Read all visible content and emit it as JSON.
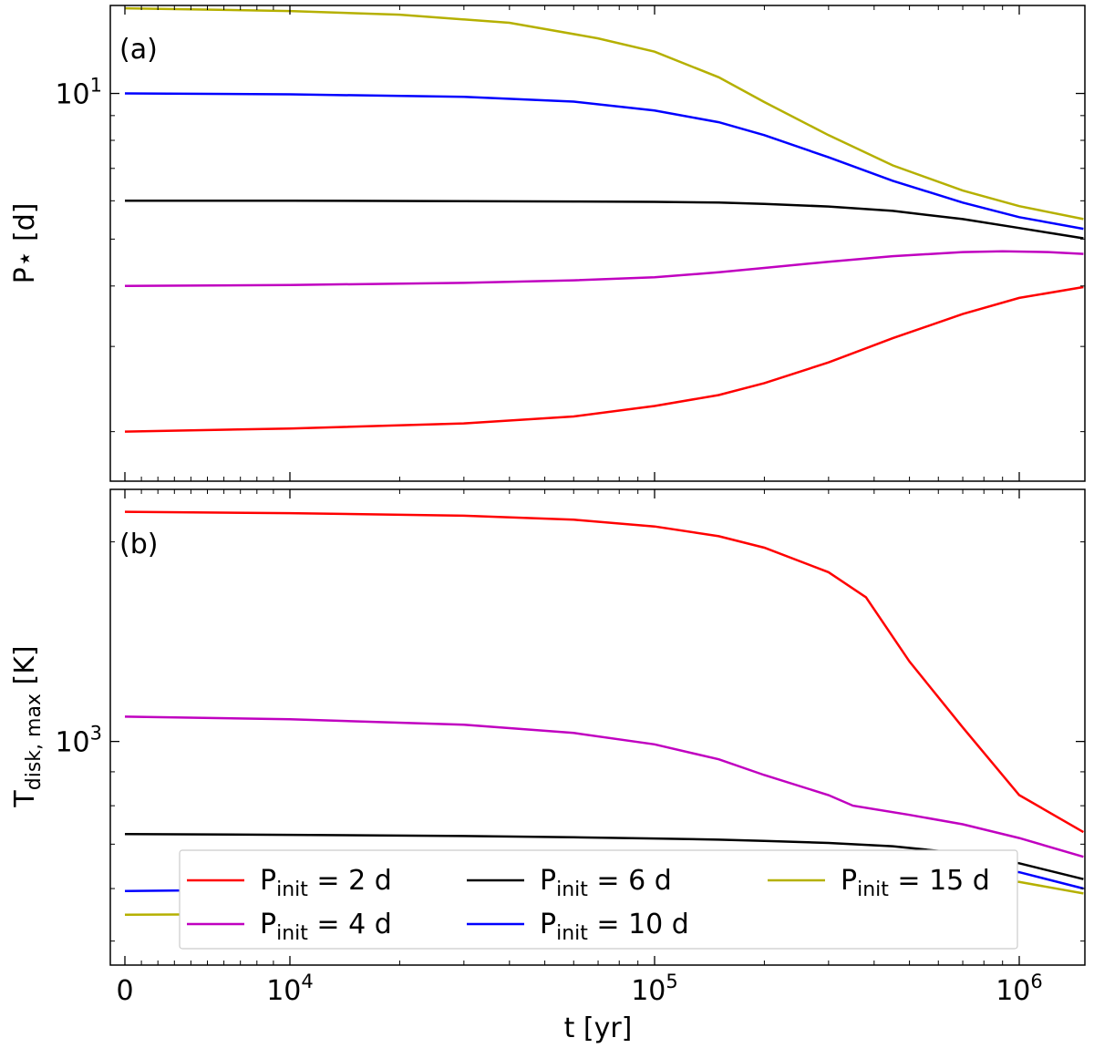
{
  "chart_data": [
    {
      "type": "line",
      "panel_label": "(a)",
      "xlabel": "",
      "ylabel": "P⋆ [d]",
      "xscale": "symlog",
      "yscale": "log",
      "xlim": [
        0,
        1500000
      ],
      "ylim": [
        1.58,
        15.2
      ],
      "yticks": [
        {
          "value": 10,
          "base": "10",
          "exp": "1"
        }
      ],
      "xtick_labels_shown": false,
      "grid": false,
      "series": [
        {
          "name": "P_init = 2 d",
          "color": "#ff0000",
          "x": [
            0,
            10000,
            30000,
            60000,
            100000,
            150000,
            200000,
            300000,
            450000,
            700000,
            1000000,
            1500000
          ],
          "y": [
            2.0,
            2.03,
            2.08,
            2.15,
            2.26,
            2.38,
            2.52,
            2.78,
            3.12,
            3.5,
            3.78,
            3.98
          ]
        },
        {
          "name": "P_init = 4 d",
          "color": "#c000c0",
          "x": [
            0,
            10000,
            30000,
            60000,
            100000,
            150000,
            200000,
            300000,
            450000,
            700000,
            900000,
            1200000,
            1500000
          ],
          "y": [
            4.0,
            4.02,
            4.06,
            4.11,
            4.17,
            4.27,
            4.36,
            4.49,
            4.61,
            4.7,
            4.72,
            4.7,
            4.66
          ]
        },
        {
          "name": "P_init = 6 d",
          "color": "#000000",
          "x": [
            0,
            10000,
            30000,
            60000,
            100000,
            150000,
            200000,
            300000,
            450000,
            700000,
            1000000,
            1500000
          ],
          "y": [
            6.0,
            6.0,
            5.99,
            5.98,
            5.97,
            5.95,
            5.91,
            5.84,
            5.72,
            5.5,
            5.27,
            5.02
          ]
        },
        {
          "name": "P_init = 10 d",
          "color": "#0000ff",
          "x": [
            0,
            10000,
            30000,
            60000,
            100000,
            150000,
            200000,
            300000,
            450000,
            700000,
            1000000,
            1500000
          ],
          "y": [
            10.0,
            9.96,
            9.84,
            9.62,
            9.22,
            8.72,
            8.2,
            7.38,
            6.6,
            5.95,
            5.55,
            5.25
          ]
        },
        {
          "name": "P_init = 15 d",
          "color": "#b5b000",
          "x": [
            0,
            10000,
            20000,
            40000,
            70000,
            100000,
            150000,
            200000,
            300000,
            450000,
            700000,
            1000000,
            1500000
          ],
          "y": [
            15.0,
            14.8,
            14.55,
            14.0,
            13.0,
            12.2,
            10.8,
            9.6,
            8.2,
            7.1,
            6.3,
            5.85,
            5.5
          ]
        }
      ]
    },
    {
      "type": "line",
      "panel_label": "(b)",
      "xlabel": "t [yr]",
      "ylabel": "T",
      "ylabel_sub": "disk, max",
      "ylabel_unit": " [K]",
      "xscale": "symlog",
      "yscale": "log",
      "xlim": [
        0,
        1500000
      ],
      "ylim": [
        460,
        2400
      ],
      "yticks": [
        {
          "value": 1000,
          "base": "10",
          "exp": "3"
        }
      ],
      "xticks": [
        {
          "value": 0,
          "label": "0"
        },
        {
          "value": 10000,
          "base": "10",
          "exp": "4"
        },
        {
          "value": 100000,
          "base": "10",
          "exp": "5"
        },
        {
          "value": 1000000,
          "base": "10",
          "exp": "6"
        }
      ],
      "grid": false,
      "legend": {
        "position": "lower-left",
        "columns": 3
      },
      "series": [
        {
          "name": "P_init = 2 d",
          "color": "#ff0000",
          "x": [
            0,
            10000,
            30000,
            60000,
            100000,
            150000,
            200000,
            300000,
            380000,
            500000,
            700000,
            1000000,
            1500000
          ],
          "y": [
            2220,
            2210,
            2190,
            2160,
            2110,
            2040,
            1960,
            1800,
            1650,
            1320,
            1050,
            830,
            730
          ]
        },
        {
          "name": "P_init = 4 d",
          "color": "#c000c0",
          "x": [
            0,
            10000,
            30000,
            60000,
            100000,
            150000,
            200000,
            300000,
            350000,
            500000,
            700000,
            1000000,
            1500000
          ],
          "y": [
            1090,
            1080,
            1060,
            1030,
            990,
            940,
            890,
            830,
            800,
            775,
            750,
            715,
            670
          ]
        },
        {
          "name": "P_init = 6 d",
          "color": "#000000",
          "x": [
            0,
            10000,
            30000,
            60000,
            100000,
            150000,
            200000,
            300000,
            450000,
            700000,
            1000000,
            1500000
          ],
          "y": [
            725,
            723,
            720,
            717,
            714,
            711,
            708,
            703,
            695,
            678,
            655,
            620
          ]
        },
        {
          "name": "P_init = 10 d",
          "color": "#0000ff",
          "x": [
            0,
            10000,
            30000,
            60000,
            100000,
            150000,
            200000,
            300000,
            450000,
            600000,
            800000,
            1000000,
            1500000
          ],
          "y": [
            595,
            598,
            603,
            609,
            617,
            626,
            633,
            641,
            646,
            646,
            642,
            635,
            600
          ]
        },
        {
          "name": "P_init = 15 d",
          "color": "#b5b000",
          "x": [
            0,
            10000,
            30000,
            60000,
            100000,
            150000,
            200000,
            300000,
            450000,
            700000,
            1000000,
            1500000
          ],
          "y": [
            548,
            549,
            550,
            552,
            556,
            567,
            580,
            600,
            617,
            623,
            614,
            590
          ]
        }
      ]
    }
  ],
  "legend": {
    "entries": [
      {
        "label_main": "P",
        "label_sub": "init",
        "label_value": " = 2 d",
        "color": "#ff0000"
      },
      {
        "label_main": "P",
        "label_sub": "init",
        "label_value": " = 6 d",
        "color": "#000000"
      },
      {
        "label_main": "P",
        "label_sub": "init",
        "label_value": " = 15 d",
        "color": "#b5b000"
      },
      {
        "label_main": "P",
        "label_sub": "init",
        "label_value": " = 4 d",
        "color": "#c000c0"
      },
      {
        "label_main": "P",
        "label_sub": "init",
        "label_value": " = 10 d",
        "color": "#0000ff"
      }
    ]
  }
}
